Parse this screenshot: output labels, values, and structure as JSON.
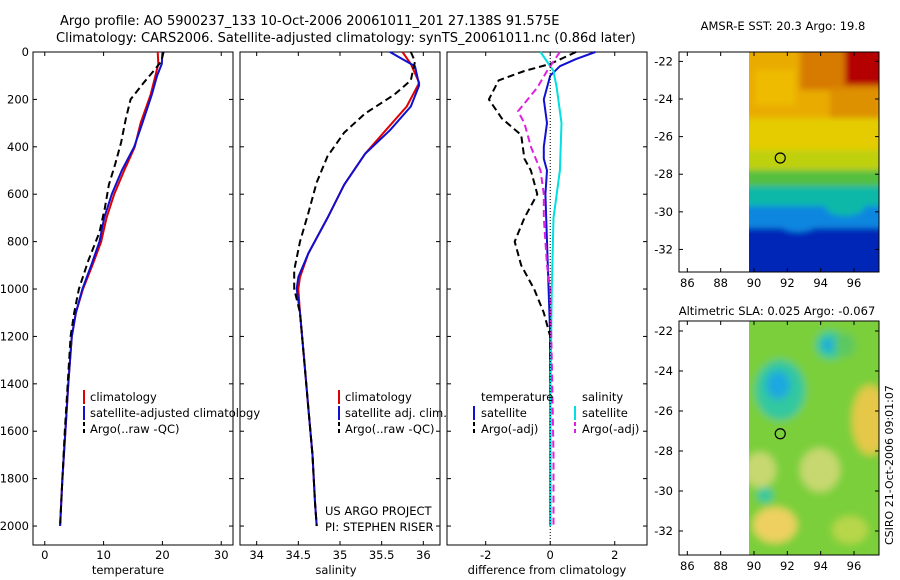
{
  "header": {
    "line1": "Argo profile: AO 5900237_133 10-Oct-2006 20061011_201 27.138S 91.575E",
    "line2": "Climatology: CARS2006. Satellite-adjusted climatology: synTS_20061011.nc (0.86d later)"
  },
  "colors": {
    "climatology": "#e00000",
    "satellite": "#1010d0",
    "argo": "#000000",
    "salinity_sat": "#00e0e0",
    "salinity_argo": "#e020e0"
  },
  "chart_data": [
    {
      "type": "line",
      "name": "temperature-profile",
      "xlabel": "temperature",
      "ylabel": "",
      "xlim": [
        -2,
        32
      ],
      "ylim": [
        2080,
        0
      ],
      "xticks": [
        0,
        10,
        20,
        30
      ],
      "yticks": [
        0,
        200,
        400,
        600,
        800,
        1000,
        1200,
        1400,
        1600,
        1800,
        2000
      ],
      "legend": [
        "climatology",
        "satellite-adjusted climatology",
        "Argo(..raw -QC)"
      ],
      "series": [
        {
          "name": "climatology",
          "style": "solid",
          "color": "#e00000",
          "points": [
            [
              19.2,
              0
            ],
            [
              19.3,
              50
            ],
            [
              18.8,
              100
            ],
            [
              18.0,
              180
            ],
            [
              16.3,
              300
            ],
            [
              15.3,
              400
            ],
            [
              13.5,
              500
            ],
            [
              11.8,
              600
            ],
            [
              10.5,
              700
            ],
            [
              9.6,
              800
            ],
            [
              8.1,
              900
            ],
            [
              6.5,
              1000
            ],
            [
              5.3,
              1100
            ],
            [
              4.6,
              1200
            ],
            [
              4.0,
              1400
            ],
            [
              3.5,
              1600
            ],
            [
              3.0,
              1800
            ],
            [
              2.6,
              2000
            ]
          ]
        },
        {
          "name": "satellite-adjusted climatology",
          "style": "solid",
          "color": "#1010d0",
          "points": [
            [
              20.0,
              0
            ],
            [
              19.9,
              50
            ],
            [
              19.1,
              100
            ],
            [
              18.2,
              180
            ],
            [
              16.6,
              300
            ],
            [
              15.2,
              400
            ],
            [
              13.1,
              500
            ],
            [
              11.4,
              600
            ],
            [
              10.1,
              700
            ],
            [
              9.3,
              800
            ],
            [
              7.9,
              900
            ],
            [
              6.4,
              1000
            ],
            [
              5.3,
              1100
            ],
            [
              4.6,
              1200
            ],
            [
              4.0,
              1400
            ],
            [
              3.5,
              1600
            ],
            [
              3.0,
              1800
            ],
            [
              2.6,
              2000
            ]
          ]
        },
        {
          "name": "Argo(..raw -QC)",
          "style": "dashed",
          "color": "#000000",
          "points": [
            [
              20.2,
              0
            ],
            [
              19.8,
              40
            ],
            [
              18.5,
              80
            ],
            [
              16.8,
              130
            ],
            [
              14.6,
              200
            ],
            [
              13.8,
              280
            ],
            [
              13.0,
              380
            ],
            [
              12.0,
              470
            ],
            [
              10.9,
              560
            ],
            [
              10.2,
              660
            ],
            [
              9.3,
              760
            ],
            [
              7.4,
              880
            ],
            [
              5.8,
              1000
            ],
            [
              5.0,
              1100
            ],
            [
              4.4,
              1200
            ],
            [
              3.9,
              1400
            ],
            [
              3.4,
              1600
            ],
            [
              3.0,
              1800
            ],
            [
              2.6,
              2000
            ]
          ]
        }
      ]
    },
    {
      "type": "line",
      "name": "salinity-profile",
      "xlabel": "salinity",
      "xlim": [
        33.8,
        36.2
      ],
      "ylim": [
        2080,
        0
      ],
      "xticks": [
        34,
        34.5,
        35,
        35.5,
        36
      ],
      "legend": [
        "climatology",
        "satellite adj. clim.",
        "Argo(..raw -QC)"
      ],
      "series": [
        {
          "name": "climatology",
          "style": "solid",
          "color": "#e00000",
          "points": [
            [
              35.75,
              0
            ],
            [
              35.85,
              50
            ],
            [
              35.95,
              130
            ],
            [
              35.8,
              230
            ],
            [
              35.55,
              330
            ],
            [
              35.3,
              430
            ],
            [
              35.05,
              560
            ],
            [
              34.85,
              700
            ],
            [
              34.62,
              850
            ],
            [
              34.52,
              950
            ],
            [
              34.5,
              1000
            ],
            [
              34.52,
              1100
            ],
            [
              34.57,
              1300
            ],
            [
              34.62,
              1500
            ],
            [
              34.67,
              1700
            ],
            [
              34.7,
              1900
            ],
            [
              34.72,
              2000
            ]
          ]
        },
        {
          "name": "satellite adj. clim.",
          "style": "solid",
          "color": "#1010d0",
          "points": [
            [
              35.6,
              0
            ],
            [
              35.7,
              20
            ],
            [
              35.9,
              60
            ],
            [
              35.95,
              140
            ],
            [
              35.85,
              230
            ],
            [
              35.6,
              330
            ],
            [
              35.3,
              430
            ],
            [
              35.05,
              560
            ],
            [
              34.85,
              700
            ],
            [
              34.62,
              850
            ],
            [
              34.5,
              950
            ],
            [
              34.48,
              1000
            ],
            [
              34.52,
              1100
            ],
            [
              34.57,
              1300
            ],
            [
              34.62,
              1500
            ],
            [
              34.67,
              1700
            ],
            [
              34.7,
              1900
            ],
            [
              34.72,
              2000
            ]
          ]
        },
        {
          "name": "Argo(..raw -QC)",
          "style": "dashed",
          "color": "#000000",
          "points": [
            [
              35.85,
              0
            ],
            [
              35.9,
              40
            ],
            [
              35.85,
              120
            ],
            [
              35.65,
              180
            ],
            [
              35.3,
              260
            ],
            [
              35.05,
              340
            ],
            [
              34.85,
              440
            ],
            [
              34.72,
              550
            ],
            [
              34.62,
              680
            ],
            [
              34.52,
              800
            ],
            [
              34.45,
              920
            ],
            [
              34.45,
              1000
            ],
            [
              34.52,
              1100
            ],
            [
              34.57,
              1300
            ],
            [
              34.62,
              1500
            ],
            [
              34.67,
              1700
            ],
            [
              34.7,
              1900
            ],
            [
              34.72,
              2000
            ]
          ]
        }
      ]
    },
    {
      "type": "line",
      "name": "difference-profile",
      "xlabel": "difference from climatology",
      "xlim": [
        -3.2,
        3.0
      ],
      "ylim": [
        2080,
        0
      ],
      "xticks": [
        -2,
        0,
        2
      ],
      "legend_temperature": {
        "title": "temperature",
        "items": [
          "satellite",
          "Argo(-adj)"
        ]
      },
      "legend_salinity": {
        "title": "salinity",
        "items": [
          "satellite",
          "Argo(-adj)"
        ]
      },
      "series": [
        {
          "name": "temperature satellite",
          "style": "solid",
          "color": "#1010d0",
          "points": [
            [
              1.4,
              0
            ],
            [
              0.8,
              30
            ],
            [
              0.3,
              60
            ],
            [
              0.0,
              100
            ],
            [
              -0.2,
              200
            ],
            [
              -0.1,
              300
            ],
            [
              -0.2,
              400
            ],
            [
              -0.2,
              450
            ],
            [
              -0.1,
              500
            ],
            [
              -0.15,
              600
            ],
            [
              -0.1,
              800
            ],
            [
              -0.05,
              1000
            ],
            [
              0.0,
              1200
            ],
            [
              0.0,
              2000
            ]
          ]
        },
        {
          "name": "temperature Argo(-adj)",
          "style": "dashed",
          "color": "#000000",
          "points": [
            [
              0.8,
              0
            ],
            [
              0.0,
              50
            ],
            [
              -0.8,
              80
            ],
            [
              -1.6,
              120
            ],
            [
              -1.9,
              200
            ],
            [
              -1.7,
              240
            ],
            [
              -1.5,
              280
            ],
            [
              -0.9,
              350
            ],
            [
              -0.8,
              450
            ],
            [
              -0.6,
              500
            ],
            [
              -0.4,
              600
            ],
            [
              -0.8,
              700
            ],
            [
              -1.1,
              800
            ],
            [
              -0.9,
              900
            ],
            [
              -0.5,
              1000
            ],
            [
              -0.2,
              1100
            ],
            [
              0.0,
              1200
            ],
            [
              0.0,
              1400
            ],
            [
              0.0,
              2000
            ]
          ]
        },
        {
          "name": "salinity satellite",
          "style": "solid",
          "color": "#00e0e0",
          "points": [
            [
              -0.3,
              0
            ],
            [
              -0.1,
              40
            ],
            [
              0.1,
              80
            ],
            [
              0.2,
              150
            ],
            [
              0.35,
              300
            ],
            [
              0.3,
              500
            ],
            [
              0.1,
              700
            ],
            [
              0.05,
              1000
            ],
            [
              0.0,
              1500
            ],
            [
              0.0,
              2000
            ]
          ]
        },
        {
          "name": "salinity Argo(-adj)",
          "style": "dashed",
          "color": "#e020e0",
          "points": [
            [
              0.3,
              0
            ],
            [
              -0.1,
              80
            ],
            [
              -0.4,
              150
            ],
            [
              -1.0,
              250
            ],
            [
              -0.8,
              300
            ],
            [
              -0.6,
              400
            ],
            [
              -0.3,
              500
            ],
            [
              -0.2,
              600
            ],
            [
              -0.2,
              700
            ],
            [
              -0.1,
              900
            ],
            [
              0.0,
              1000
            ],
            [
              0.05,
              1300
            ],
            [
              0.1,
              1700
            ],
            [
              0.1,
              2000
            ]
          ]
        }
      ]
    },
    {
      "type": "heatmap",
      "name": "sst-map",
      "title": "AMSR-E SST: 20.3 Argo: 19.8",
      "xlim": [
        85.5,
        97.5
      ],
      "ylim": [
        -33.2,
        -21.5
      ],
      "xticks": [
        86,
        88,
        90,
        92,
        94,
        96
      ],
      "yticks": [
        -22,
        -24,
        -26,
        -28,
        -30,
        -32
      ],
      "data_lon_min": 90,
      "marker": {
        "lon": 91.575,
        "lat": -27.138
      }
    },
    {
      "type": "heatmap",
      "name": "sla-map",
      "title": "Altimetric SLA: 0.025 Argo: -0.067",
      "xlim": [
        85.5,
        97.5
      ],
      "ylim": [
        -33.2,
        -21.5
      ],
      "xticks": [
        86,
        88,
        90,
        92,
        94,
        96
      ],
      "yticks": [
        -22,
        -24,
        -26,
        -28,
        -30,
        -32
      ],
      "data_lon_min": 90,
      "marker": {
        "lon": 91.575,
        "lat": -27.138
      }
    }
  ],
  "annotations": {
    "project_line1": "US ARGO PROJECT",
    "project_line2": "PI: STEPHEN RISER",
    "timestamp": "CSIRO 21-Oct-2006 09:01:07"
  }
}
